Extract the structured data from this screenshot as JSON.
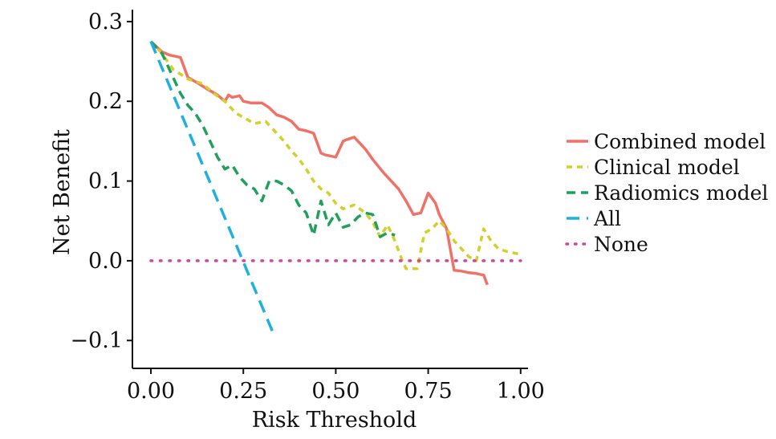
{
  "chart_data": {
    "type": "line",
    "title": "",
    "xlabel": "Risk Threshold",
    "ylabel": "Net Benefit",
    "xlim": [
      -0.05,
      1.02
    ],
    "ylim": [
      -0.135,
      0.315
    ],
    "x_ticks": [
      0.0,
      0.25,
      0.5,
      0.75,
      1.0
    ],
    "x_tick_labels": [
      "0.00",
      "0.25",
      "0.50",
      "0.75",
      "1.00"
    ],
    "y_ticks": [
      -0.1,
      0.0,
      0.1,
      0.2,
      0.3
    ],
    "y_tick_labels": [
      "−0.1",
      "0.0",
      "0.1",
      "0.2",
      "0.3"
    ],
    "grid": false,
    "legend_position": "right",
    "series": [
      {
        "name": "Combined model",
        "color": "#F07167",
        "style": "solid",
        "x": [
          0.0,
          0.03,
          0.05,
          0.08,
          0.1,
          0.13,
          0.15,
          0.18,
          0.2,
          0.21,
          0.22,
          0.24,
          0.25,
          0.27,
          0.3,
          0.32,
          0.34,
          0.36,
          0.38,
          0.4,
          0.42,
          0.44,
          0.46,
          0.47,
          0.48,
          0.5,
          0.52,
          0.53,
          0.55,
          0.58,
          0.6,
          0.63,
          0.67,
          0.69,
          0.71,
          0.73,
          0.75,
          0.77,
          0.78,
          0.8,
          0.82,
          0.84,
          0.86,
          0.88,
          0.9,
          0.91
        ],
        "y": [
          0.275,
          0.262,
          0.258,
          0.255,
          0.23,
          0.222,
          0.216,
          0.208,
          0.2,
          0.208,
          0.205,
          0.207,
          0.2,
          0.198,
          0.198,
          0.192,
          0.183,
          0.18,
          0.175,
          0.165,
          0.163,
          0.16,
          0.135,
          0.133,
          0.132,
          0.13,
          0.15,
          0.152,
          0.155,
          0.14,
          0.127,
          0.11,
          0.09,
          0.075,
          0.058,
          0.06,
          0.085,
          0.072,
          0.058,
          0.04,
          -0.012,
          -0.013,
          -0.015,
          -0.016,
          -0.018,
          -0.03
        ]
      },
      {
        "name": "Clinical model",
        "color": "#D4CF2A",
        "style": "short-dash",
        "x": [
          0.0,
          0.03,
          0.06,
          0.1,
          0.14,
          0.17,
          0.2,
          0.23,
          0.25,
          0.28,
          0.31,
          0.33,
          0.36,
          0.38,
          0.4,
          0.42,
          0.44,
          0.46,
          0.48,
          0.5,
          0.52,
          0.55,
          0.58,
          0.6,
          0.62,
          0.64,
          0.66,
          0.68,
          0.69,
          0.72,
          0.74,
          0.76,
          0.78,
          0.8,
          0.82,
          0.84,
          0.86,
          0.88,
          0.9,
          0.92,
          0.94,
          0.96,
          0.98,
          1.0
        ],
        "y": [
          0.275,
          0.26,
          0.24,
          0.228,
          0.222,
          0.21,
          0.2,
          0.185,
          0.18,
          0.172,
          0.175,
          0.165,
          0.15,
          0.138,
          0.128,
          0.115,
          0.1,
          0.09,
          0.085,
          0.072,
          0.065,
          0.07,
          0.06,
          0.048,
          0.03,
          0.045,
          0.025,
          0.0,
          -0.01,
          -0.01,
          0.035,
          0.04,
          0.05,
          0.04,
          0.025,
          0.015,
          0.005,
          0.0,
          0.04,
          0.025,
          0.015,
          0.012,
          0.01,
          0.008
        ]
      },
      {
        "name": "Radiomics model",
        "color": "#20A05A",
        "style": "dashed",
        "x": [
          0.0,
          0.03,
          0.06,
          0.08,
          0.1,
          0.12,
          0.14,
          0.16,
          0.18,
          0.2,
          0.22,
          0.24,
          0.26,
          0.28,
          0.3,
          0.32,
          0.34,
          0.36,
          0.38,
          0.4,
          0.42,
          0.44,
          0.46,
          0.48,
          0.5,
          0.52,
          0.54,
          0.56,
          0.58,
          0.6,
          0.62,
          0.64,
          0.66
        ],
        "y": [
          0.275,
          0.26,
          0.23,
          0.21,
          0.195,
          0.185,
          0.17,
          0.15,
          0.13,
          0.115,
          0.12,
          0.105,
          0.095,
          0.09,
          0.075,
          0.1,
          0.1,
          0.095,
          0.088,
          0.07,
          0.06,
          0.032,
          0.075,
          0.045,
          0.06,
          0.042,
          0.045,
          0.055,
          0.06,
          0.058,
          0.03,
          0.035,
          0.032
        ]
      },
      {
        "name": "All",
        "color": "#1FB0E0",
        "style": "long-dash",
        "x": [
          0.0,
          0.33
        ],
        "y": [
          0.275,
          -0.09
        ]
      },
      {
        "name": "None",
        "color": "#D1459C",
        "style": "dotted",
        "x": [
          0.0,
          1.0
        ],
        "y": [
          0.0,
          0.0
        ]
      }
    ]
  }
}
